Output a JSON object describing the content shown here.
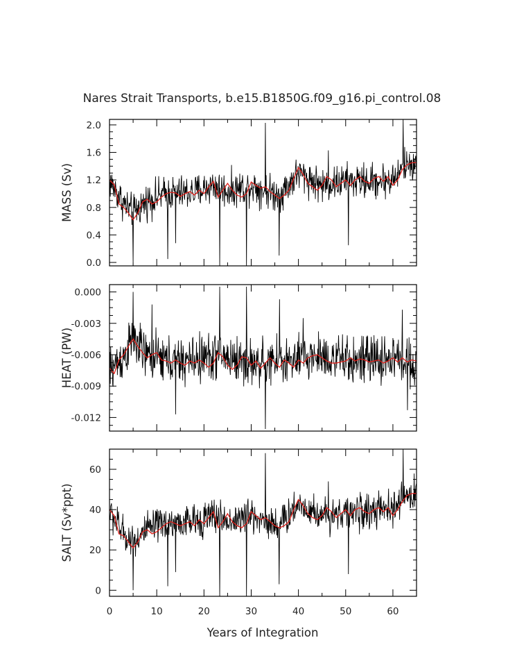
{
  "title": "Nares Strait Transports, b.e15.B1850G.f09_g16.pi_control.08",
  "chart_data": {
    "type": "line",
    "title": "Nares Strait Transports, b.e15.B1850G.f09_g16.pi_control.08",
    "xlabel": "Years of Integration",
    "xlim": [
      0,
      65
    ],
    "xticks": [
      0,
      10,
      20,
      30,
      40,
      50,
      60
    ],
    "xtick_labels": [
      "0",
      "10",
      "20",
      "30",
      "40",
      "50",
      "60"
    ],
    "panels": [
      {
        "ylabel": "MASS (Sv)",
        "ylim": [
          -0.05,
          2.08
        ],
        "yticks": [
          0.0,
          0.4,
          0.8,
          1.2,
          1.6,
          2.0
        ],
        "ytick_labels": [
          "0.0",
          "0.4",
          "0.8",
          "1.2",
          "1.6",
          "2.0"
        ],
        "smooth": [
          [
            0,
            1.2
          ],
          [
            1,
            1.13
          ],
          [
            2,
            0.85
          ],
          [
            3,
            0.8
          ],
          [
            4,
            0.72
          ],
          [
            5,
            0.62
          ],
          [
            6,
            0.72
          ],
          [
            7,
            0.88
          ],
          [
            8,
            0.92
          ],
          [
            9,
            0.85
          ],
          [
            10,
            0.88
          ],
          [
            11,
            0.95
          ],
          [
            12,
            1.0
          ],
          [
            13,
            1.02
          ],
          [
            14,
            1.01
          ],
          [
            15,
            0.96
          ],
          [
            16,
            1.0
          ],
          [
            17,
            1.03
          ],
          [
            18,
            0.98
          ],
          [
            19,
            1.05
          ],
          [
            20,
            1.0
          ],
          [
            21,
            1.1
          ],
          [
            22,
            1.18
          ],
          [
            23,
            0.95
          ],
          [
            24,
            1.05
          ],
          [
            25,
            1.15
          ],
          [
            26,
            1.05
          ],
          [
            27,
            0.98
          ],
          [
            28,
            0.95
          ],
          [
            29,
            1.0
          ],
          [
            30,
            1.17
          ],
          [
            31,
            1.12
          ],
          [
            32,
            1.08
          ],
          [
            33,
            1.1
          ],
          [
            34,
            1.03
          ],
          [
            35,
            0.98
          ],
          [
            36,
            0.93
          ],
          [
            37,
            0.98
          ],
          [
            38,
            1.05
          ],
          [
            39,
            1.22
          ],
          [
            40,
            1.38
          ],
          [
            41,
            1.28
          ],
          [
            42,
            1.15
          ],
          [
            43,
            1.1
          ],
          [
            44,
            1.05
          ],
          [
            45,
            1.12
          ],
          [
            46,
            1.25
          ],
          [
            47,
            1.2
          ],
          [
            48,
            1.1
          ],
          [
            49,
            1.15
          ],
          [
            50,
            1.2
          ],
          [
            51,
            1.12
          ],
          [
            52,
            1.2
          ],
          [
            53,
            1.25
          ],
          [
            54,
            1.18
          ],
          [
            55,
            1.15
          ],
          [
            56,
            1.22
          ],
          [
            57,
            1.25
          ],
          [
            58,
            1.18
          ],
          [
            59,
            1.25
          ],
          [
            60,
            1.12
          ],
          [
            61,
            1.2
          ],
          [
            62,
            1.35
          ],
          [
            63,
            1.42
          ],
          [
            64,
            1.45
          ],
          [
            65,
            1.45
          ]
        ],
        "raw": {
          "mean": [
            [
              0,
              1.18
            ],
            [
              3,
              0.86
            ],
            [
              5,
              0.72
            ],
            [
              8,
              0.9
            ],
            [
              12,
              1.0
            ],
            [
              18,
              1.02
            ],
            [
              22,
              1.12
            ],
            [
              25,
              1.04
            ],
            [
              30,
              1.12
            ],
            [
              36,
              0.98
            ],
            [
              40,
              1.3
            ],
            [
              45,
              1.12
            ],
            [
              50,
              1.18
            ],
            [
              55,
              1.18
            ],
            [
              60,
              1.2
            ],
            [
              63,
              1.42
            ],
            [
              65,
              1.45
            ]
          ],
          "noise": 0.2,
          "floor": -0.05,
          "spikes": [
            [
              5,
              0.0
            ],
            [
              12.3,
              0.05
            ],
            [
              14,
              0.28
            ],
            [
              23.3,
              -0.05
            ],
            [
              29,
              -0.05
            ],
            [
              33,
              2.03
            ],
            [
              35.9,
              0.1
            ],
            [
              46.3,
              1.63
            ],
            [
              50.6,
              0.25
            ],
            [
              62.2,
              2.08
            ]
          ]
        }
      },
      {
        "ylabel": "HEAT (PW)",
        "ylim": [
          -0.0133,
          0.0007
        ],
        "yticks": [
          0.0,
          -0.003,
          -0.006,
          -0.009,
          -0.012
        ],
        "ytick_labels": [
          "0.000",
          "-0.003",
          "-0.006",
          "-0.009",
          "-0.012"
        ],
        "smooth": [
          [
            0,
            -0.0073
          ],
          [
            1,
            -0.0078
          ],
          [
            2,
            -0.0065
          ],
          [
            3,
            -0.006
          ],
          [
            4,
            -0.0052
          ],
          [
            5,
            -0.0045
          ],
          [
            6,
            -0.0052
          ],
          [
            7,
            -0.0058
          ],
          [
            8,
            -0.0063
          ],
          [
            9,
            -0.006
          ],
          [
            10,
            -0.0058
          ],
          [
            11,
            -0.0065
          ],
          [
            12,
            -0.0066
          ],
          [
            13,
            -0.0068
          ],
          [
            14,
            -0.0065
          ],
          [
            15,
            -0.0068
          ],
          [
            16,
            -0.007
          ],
          [
            17,
            -0.0066
          ],
          [
            18,
            -0.0068
          ],
          [
            19,
            -0.0065
          ],
          [
            20,
            -0.0068
          ],
          [
            21,
            -0.0072
          ],
          [
            22,
            -0.0068
          ],
          [
            23,
            -0.0058
          ],
          [
            24,
            -0.0062
          ],
          [
            25,
            -0.007
          ],
          [
            26,
            -0.0074
          ],
          [
            27,
            -0.007
          ],
          [
            28,
            -0.0062
          ],
          [
            29,
            -0.0063
          ],
          [
            30,
            -0.007
          ],
          [
            31,
            -0.0066
          ],
          [
            32,
            -0.0073
          ],
          [
            33,
            -0.0068
          ],
          [
            34,
            -0.0063
          ],
          [
            35,
            -0.0068
          ],
          [
            36,
            -0.0072
          ],
          [
            37,
            -0.0065
          ],
          [
            38,
            -0.0068
          ],
          [
            39,
            -0.0072
          ],
          [
            40,
            -0.0065
          ],
          [
            41,
            -0.0068
          ],
          [
            42,
            -0.0063
          ],
          [
            43,
            -0.0061
          ],
          [
            44,
            -0.006
          ],
          [
            45,
            -0.0063
          ],
          [
            46,
            -0.0066
          ],
          [
            47,
            -0.0068
          ],
          [
            48,
            -0.0068
          ],
          [
            49,
            -0.0067
          ],
          [
            50,
            -0.0066
          ],
          [
            51,
            -0.0063
          ],
          [
            52,
            -0.0066
          ],
          [
            53,
            -0.0064
          ],
          [
            54,
            -0.0065
          ],
          [
            55,
            -0.0067
          ],
          [
            56,
            -0.0066
          ],
          [
            57,
            -0.0065
          ],
          [
            58,
            -0.0068
          ],
          [
            59,
            -0.0066
          ],
          [
            60,
            -0.0063
          ],
          [
            61,
            -0.0067
          ],
          [
            62,
            -0.0063
          ],
          [
            63,
            -0.0067
          ],
          [
            64,
            -0.0065
          ],
          [
            65,
            -0.0066
          ]
        ],
        "raw": {
          "mean": [
            [
              0,
              -0.0075
            ],
            [
              3,
              -0.0062
            ],
            [
              5,
              -0.0046
            ],
            [
              8,
              -0.0062
            ],
            [
              15,
              -0.0067
            ],
            [
              23,
              -0.006
            ],
            [
              30,
              -0.0068
            ],
            [
              40,
              -0.0066
            ],
            [
              44,
              -0.006
            ],
            [
              50,
              -0.0066
            ],
            [
              60,
              -0.0064
            ],
            [
              65,
              -0.0066
            ]
          ],
          "noise": 0.0018,
          "floor": -0.0133,
          "spikes": [
            [
              5,
              0.0
            ],
            [
              9,
              -0.0012
            ],
            [
              14,
              -0.0117
            ],
            [
              23.3,
              0.0005
            ],
            [
              29,
              0.0005
            ],
            [
              33,
              -0.0131
            ],
            [
              36,
              -0.0007
            ],
            [
              41,
              -0.0025
            ],
            [
              62,
              -0.0017
            ],
            [
              63.1,
              -0.0113
            ]
          ]
        }
      },
      {
        "ylabel": "SALT (Sv*ppt)",
        "ylim": [
          -3,
          70
        ],
        "yticks": [
          0,
          20,
          40,
          60
        ],
        "ytick_labels": [
          "0",
          "20",
          "40",
          "60"
        ],
        "smooth": [
          [
            0,
            40
          ],
          [
            1,
            37
          ],
          [
            2,
            28
          ],
          [
            3,
            27
          ],
          [
            4,
            24
          ],
          [
            5,
            21
          ],
          [
            6,
            24
          ],
          [
            7,
            29
          ],
          [
            8,
            30
          ],
          [
            9,
            28
          ],
          [
            10,
            29
          ],
          [
            11,
            31
          ],
          [
            12,
            33
          ],
          [
            13,
            34
          ],
          [
            14,
            33
          ],
          [
            15,
            32
          ],
          [
            16,
            33
          ],
          [
            17,
            34
          ],
          [
            18,
            32
          ],
          [
            19,
            35
          ],
          [
            20,
            33
          ],
          [
            21,
            36
          ],
          [
            22,
            39
          ],
          [
            23,
            31
          ],
          [
            24,
            34
          ],
          [
            25,
            38
          ],
          [
            26,
            34
          ],
          [
            27,
            32
          ],
          [
            28,
            31
          ],
          [
            29,
            33
          ],
          [
            30,
            39
          ],
          [
            31,
            37
          ],
          [
            32,
            35
          ],
          [
            33,
            36
          ],
          [
            34,
            34
          ],
          [
            35,
            32
          ],
          [
            36,
            31
          ],
          [
            37,
            32
          ],
          [
            38,
            34
          ],
          [
            39,
            40
          ],
          [
            40,
            45
          ],
          [
            41,
            42
          ],
          [
            42,
            38
          ],
          [
            43,
            36
          ],
          [
            44,
            35
          ],
          [
            45,
            37
          ],
          [
            46,
            41
          ],
          [
            47,
            39
          ],
          [
            48,
            36
          ],
          [
            49,
            38
          ],
          [
            50,
            40
          ],
          [
            51,
            37
          ],
          [
            52,
            40
          ],
          [
            53,
            41
          ],
          [
            54,
            39
          ],
          [
            55,
            38
          ],
          [
            56,
            40
          ],
          [
            57,
            41
          ],
          [
            58,
            39
          ],
          [
            59,
            41
          ],
          [
            60,
            37
          ],
          [
            61,
            40
          ],
          [
            62,
            44
          ],
          [
            63,
            47
          ],
          [
            64,
            48
          ],
          [
            65,
            48
          ]
        ],
        "raw": {
          "mean": [
            [
              0,
              39
            ],
            [
              3,
              28
            ],
            [
              5,
              24
            ],
            [
              8,
              30
            ],
            [
              12,
              33
            ],
            [
              18,
              34
            ],
            [
              22,
              37
            ],
            [
              25,
              34
            ],
            [
              30,
              37
            ],
            [
              36,
              32
            ],
            [
              40,
              43
            ],
            [
              45,
              37
            ],
            [
              50,
              39
            ],
            [
              55,
              39
            ],
            [
              60,
              40
            ],
            [
              63,
              47
            ],
            [
              65,
              48
            ]
          ],
          "noise": 6.8,
          "floor": -3,
          "spikes": [
            [
              5,
              0
            ],
            [
              12.3,
              2
            ],
            [
              14,
              9
            ],
            [
              23.3,
              -3
            ],
            [
              29,
              -3
            ],
            [
              33,
              68
            ],
            [
              35.9,
              3
            ],
            [
              46.3,
              54
            ],
            [
              50.6,
              8
            ],
            [
              62.2,
              70
            ]
          ]
        }
      }
    ]
  }
}
